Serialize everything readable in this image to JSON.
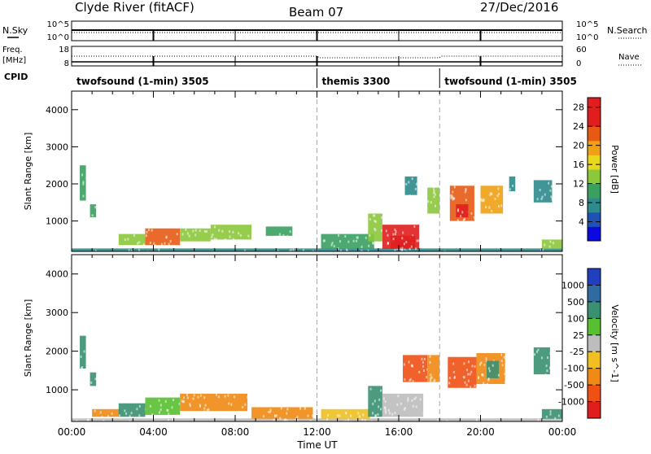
{
  "header": {
    "station": "Clyde River (fitACF)",
    "beam": "Beam 07",
    "date": "27/Dec/2016"
  },
  "top_panels": {
    "nsky_label": "N.Sky",
    "nsky_ticks": [
      "10^5",
      "10^0"
    ],
    "nsearch_label": "N.Search",
    "nsearch_ticks": [
      "10^5",
      "10^0"
    ],
    "freq_label": "Freq.",
    "freq_unit": "[MHz]",
    "freq_ticks": [
      "18",
      "8"
    ],
    "nave_label": "Nave",
    "nave_ticks": [
      "60",
      "0"
    ],
    "cpid_label": "CPID",
    "programs": [
      {
        "name": "twofsound (1-min) 3505",
        "start_h": 0
      },
      {
        "name": "themis 3300",
        "start_h": 12
      },
      {
        "name": "twofsound (1-min) 3505",
        "start_h": 18
      }
    ]
  },
  "x_axis": {
    "label": "Time UT",
    "ticks": [
      "00:00",
      "04:00",
      "08:00",
      "12:00",
      "16:00",
      "20:00",
      "00:00"
    ]
  },
  "chart_data": [
    {
      "type": "heatmap",
      "title": "",
      "xlabel": "",
      "ylabel": "Slant Range [km]",
      "xlim": [
        0,
        24
      ],
      "ylim": [
        180,
        4500
      ],
      "yticks": [
        "1000",
        "2000",
        "3000",
        "4000"
      ],
      "colorbar": {
        "label": "Power [dB]",
        "ticks": [
          "4",
          "8",
          "12",
          "16",
          "20",
          "24",
          "28"
        ],
        "range": [
          0,
          30
        ],
        "colors": [
          "#0a0ae0",
          "#1e52b4",
          "#2e8a8c",
          "#3aa060",
          "#8cc83c",
          "#e8d81c",
          "#f0a014",
          "#e85a14",
          "#e01e1e",
          "#e01e1e"
        ]
      },
      "patches": [
        {
          "t0": 0.0,
          "t1": 24.0,
          "r0": 180,
          "r1": 260,
          "v": 8
        },
        {
          "t0": 0.4,
          "t1": 0.7,
          "r0": 1550,
          "r1": 2500,
          "v": 10
        },
        {
          "t0": 0.9,
          "t1": 1.2,
          "r0": 1100,
          "r1": 1450,
          "v": 10
        },
        {
          "t0": 2.3,
          "t1": 3.6,
          "r0": 350,
          "r1": 650,
          "v": 14
        },
        {
          "t0": 3.6,
          "t1": 5.3,
          "r0": 350,
          "r1": 800,
          "v": 22
        },
        {
          "t0": 5.3,
          "t1": 6.8,
          "r0": 450,
          "r1": 800,
          "v": 14
        },
        {
          "t0": 6.8,
          "t1": 8.8,
          "r0": 500,
          "r1": 900,
          "v": 12
        },
        {
          "t0": 9.5,
          "t1": 10.8,
          "r0": 600,
          "r1": 850,
          "v": 10
        },
        {
          "t0": 12.2,
          "t1": 14.8,
          "r0": 250,
          "r1": 650,
          "v": 9
        },
        {
          "t0": 14.5,
          "t1": 15.2,
          "r0": 450,
          "r1": 1200,
          "v": 13
        },
        {
          "t0": 15.2,
          "t1": 17.0,
          "r0": 250,
          "r1": 900,
          "v": 24
        },
        {
          "t0": 15.6,
          "t1": 16.8,
          "r0": 250,
          "r1": 600,
          "v": 28
        },
        {
          "t0": 16.3,
          "t1": 16.9,
          "r0": 1700,
          "r1": 2200,
          "v": 8
        },
        {
          "t0": 17.4,
          "t1": 18.0,
          "r0": 1200,
          "r1": 1900,
          "v": 14
        },
        {
          "t0": 18.5,
          "t1": 19.7,
          "r0": 1000,
          "r1": 1950,
          "v": 22
        },
        {
          "t0": 18.8,
          "t1": 19.4,
          "r0": 1100,
          "r1": 1450,
          "v": 28
        },
        {
          "t0": 20.0,
          "t1": 21.1,
          "r0": 1200,
          "r1": 1950,
          "v": 19
        },
        {
          "t0": 21.4,
          "t1": 21.7,
          "r0": 1800,
          "r1": 2200,
          "v": 8
        },
        {
          "t0": 22.6,
          "t1": 23.5,
          "r0": 1500,
          "r1": 2100,
          "v": 8
        },
        {
          "t0": 23.0,
          "t1": 24.0,
          "r0": 250,
          "r1": 500,
          "v": 12
        }
      ]
    },
    {
      "type": "heatmap",
      "title": "",
      "xlabel": "Time UT",
      "ylabel": "Slant Range [km]",
      "xlim": [
        0,
        24
      ],
      "ylim": [
        180,
        4500
      ],
      "yticks": [
        "1000",
        "2000",
        "3000",
        "4000"
      ],
      "colorbar": {
        "label": "Velocity [m s^-1]",
        "ticks": [
          "1000",
          "500",
          "100",
          "25",
          "-25",
          "-100",
          "-500",
          "-1000"
        ],
        "colors": [
          "#2040c0",
          "#2f6aa0",
          "#3a9070",
          "#58c030",
          "#bdbdbd",
          "#f0c020",
          "#f08a14",
          "#f05014",
          "#e01e1e"
        ]
      },
      "patches": [
        {
          "t0": 0.0,
          "t1": 24.0,
          "r0": 180,
          "r1": 260,
          "c": 4
        },
        {
          "t0": 0.4,
          "t1": 0.7,
          "r0": 1550,
          "r1": 2400,
          "c": 2
        },
        {
          "t0": 0.9,
          "t1": 1.2,
          "r0": 1100,
          "r1": 1450,
          "c": 2
        },
        {
          "t0": 1.0,
          "t1": 2.4,
          "r0": 300,
          "r1": 500,
          "c": 6
        },
        {
          "t0": 2.3,
          "t1": 3.6,
          "r0": 300,
          "r1": 650,
          "c": 2
        },
        {
          "t0": 3.6,
          "t1": 5.3,
          "r0": 350,
          "r1": 800,
          "c": 3
        },
        {
          "t0": 5.3,
          "t1": 8.6,
          "r0": 450,
          "r1": 900,
          "c": 6
        },
        {
          "t0": 8.8,
          "t1": 11.8,
          "r0": 250,
          "r1": 550,
          "c": 6
        },
        {
          "t0": 12.2,
          "t1": 14.6,
          "r0": 250,
          "r1": 500,
          "c": 5
        },
        {
          "t0": 14.5,
          "t1": 15.2,
          "r0": 300,
          "r1": 1100,
          "c": 2
        },
        {
          "t0": 15.2,
          "t1": 17.2,
          "r0": 300,
          "r1": 900,
          "c": 4
        },
        {
          "t0": 16.2,
          "t1": 17.4,
          "r0": 1200,
          "r1": 1900,
          "c": 7
        },
        {
          "t0": 17.4,
          "t1": 18.0,
          "r0": 1200,
          "r1": 1900,
          "c": 6
        },
        {
          "t0": 18.4,
          "t1": 19.8,
          "r0": 1050,
          "r1": 1850,
          "c": 7
        },
        {
          "t0": 19.8,
          "t1": 21.2,
          "r0": 1150,
          "r1": 1950,
          "c": 6
        },
        {
          "t0": 20.3,
          "t1": 20.9,
          "r0": 1300,
          "r1": 1750,
          "c": 2
        },
        {
          "t0": 22.6,
          "t1": 23.4,
          "r0": 1400,
          "r1": 2100,
          "c": 2
        },
        {
          "t0": 23.0,
          "t1": 24.0,
          "r0": 250,
          "r1": 500,
          "c": 2
        }
      ]
    }
  ]
}
